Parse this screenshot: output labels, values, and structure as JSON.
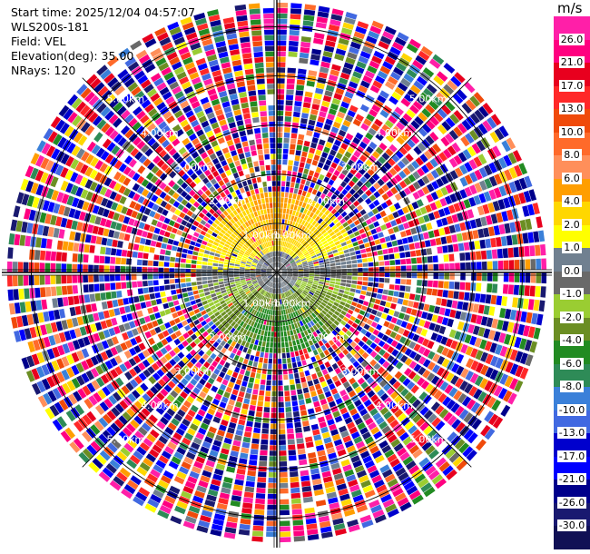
{
  "info": {
    "start_time": "Start time: 2025/12/04 04:57:07",
    "instrument": "WLS200s-181",
    "field": "Field: VEL",
    "elevation": "Elevation(deg): 35.00",
    "nrays": "NRays: 120"
  },
  "chart_data": {
    "type": "heatmap",
    "projection": "polar-ppi",
    "field": "VEL",
    "units": "m/s",
    "elevation_deg": 35.0,
    "n_rays": 120,
    "range_rings_km": [
      1,
      2,
      3,
      4,
      5
    ],
    "range_max_km": 5.6,
    "ring_labels": [
      "1.00km",
      "2.00km",
      "3.00km",
      "4.00km",
      "5.00km"
    ],
    "clean_radius_km": 1.6,
    "pattern": "coherent: positive (orange/yellow 2 to 6 m/s) toward north, negative (green -2 to -8 m/s) toward south within ~1.6 km; beyond ~1.6 km speckled noise spanning full scale",
    "colorbar": {
      "title": "m/s",
      "ticks": [
        "26.0",
        "21.0",
        "17.0",
        "13.0",
        "10.0",
        "8.0",
        "6.0",
        "4.0",
        "2.0",
        "1.0",
        "0.0",
        "-1.0",
        "-2.0",
        "-4.0",
        "-6.0",
        "-8.0",
        "-10.0",
        "-13.0",
        "-17.0",
        "-21.0",
        "-26.0",
        "-30.0"
      ],
      "colors": [
        "#ff1fa8",
        "#ff0080",
        "#e8001e",
        "#ff2828",
        "#f04a0a",
        "#ff6a2a",
        "#ff8f5a",
        "#ff9e00",
        "#ffd700",
        "#ffff00",
        "#708090",
        "#696969",
        "#9acd32",
        "#6b8e23",
        "#228b22",
        "#2e8b57",
        "#3a80d9",
        "#4169e1",
        "#0000cd",
        "#0000ff",
        "#00008b",
        "#191970",
        "#101055"
      ]
    }
  }
}
